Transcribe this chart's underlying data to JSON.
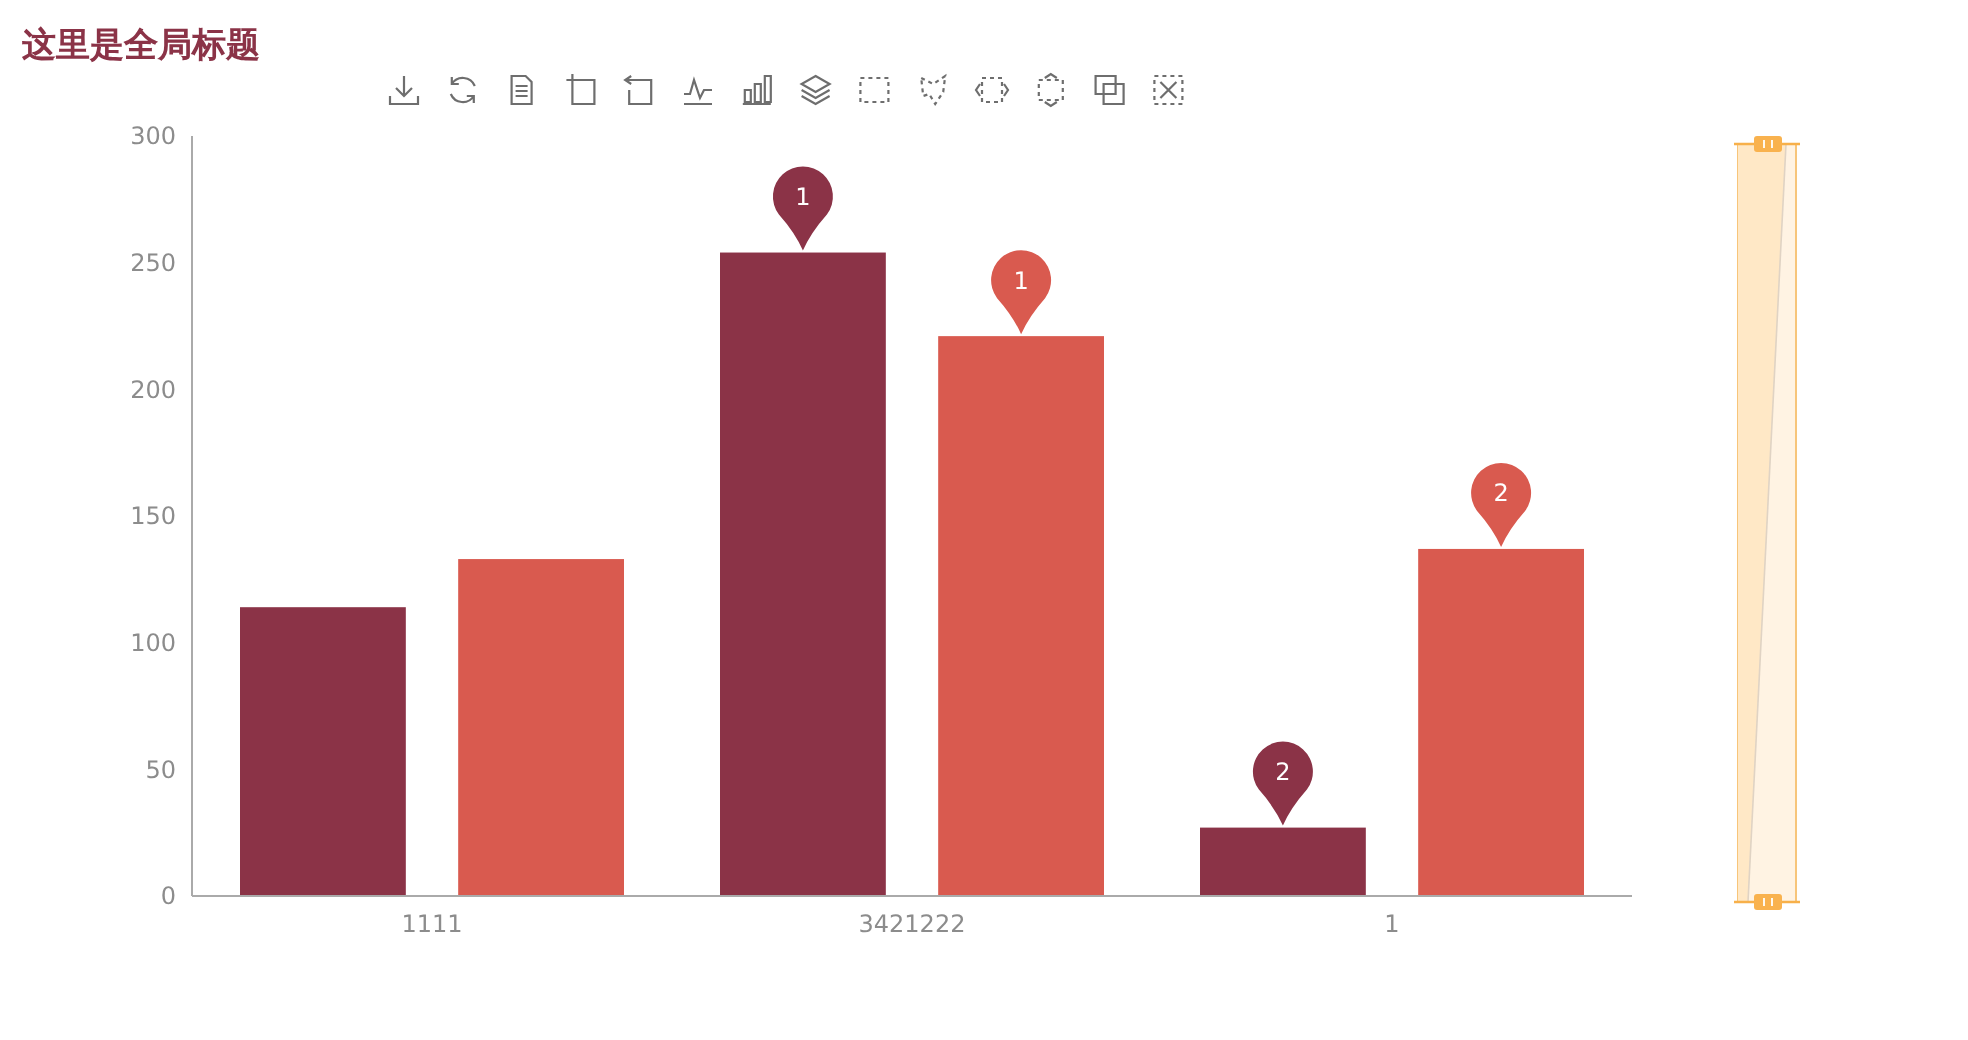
{
  "chart_data": {
    "type": "bar",
    "title": "这里是全局标题",
    "categories": [
      "1111",
      "3421222",
      "1"
    ],
    "series": [
      {
        "color": "#8b3347",
        "values": [
          114,
          254,
          27
        ]
      },
      {
        "color": "#d95a4f",
        "values": [
          133,
          221,
          137
        ]
      }
    ],
    "ylim": [
      0,
      300
    ],
    "yticks": [
      0,
      50,
      100,
      150,
      200,
      250,
      300
    ],
    "annotations": [
      "1",
      "1",
      "2",
      "2"
    ]
  }
}
